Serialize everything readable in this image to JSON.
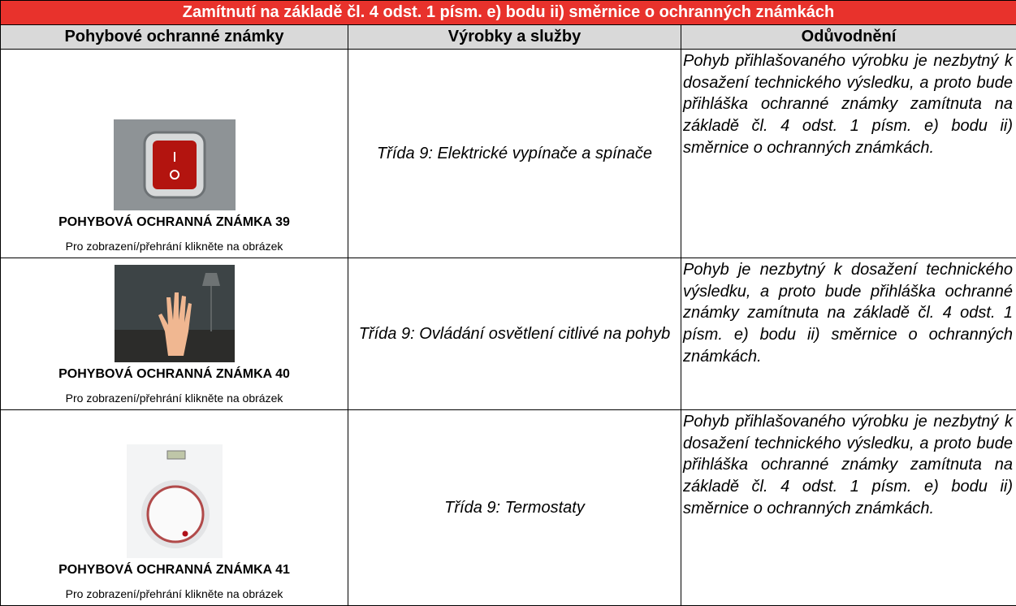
{
  "table": {
    "title": "Zamítnutí na základě čl. 4 odst. 1 písm. e) bodu ii) směrnice o ochranných známkách",
    "headers": [
      "Pohybové ochranné známky",
      "Výrobky a služby",
      "Odůvodnění"
    ],
    "rows": [
      {
        "mark": "POHYBOVÁ OCHRANNÁ ZNÁMKA 39",
        "caption": "Pro zobrazení/přehrání klikněte na obrázek",
        "goods": "Třída 9: Elektrické vypínače a spínače",
        "reasoning": "Pohyb přihlašovaného výrobku je nezbytný k dosažení technického výsledku, a proto bude přihláška ochranné známky zamítnuta na základě čl. 4 odst. 1 písm. e) bodu ii) směrnice o ochranných známkách."
      },
      {
        "mark": "POHYBOVÁ OCHRANNÁ ZNÁMKA 40",
        "caption": "Pro zobrazení/přehrání klikněte na obrázek",
        "goods": "Třída 9: Ovládání osvětlení citlivé na pohyb",
        "reasoning": "Pohyb je nezbytný k dosažení technického výsledku, a proto bude přihláška ochranné známky zamítnuta na základě čl. 4 odst. 1 písm. e) bodu ii) směrnice o ochranných známkách."
      },
      {
        "mark": "POHYBOVÁ OCHRANNÁ ZNÁMKA 41",
        "caption": "Pro zobrazení/přehrání klikněte na obrázek",
        "goods": "Třída 9: Termostaty",
        "reasoning": "Pohyb přihlašovaného výrobku je nezbytný k dosažení technického výsledku, a proto bude přihláška ochranné známky zamítnuta na základě čl. 4 odst. 1 písm. e) bodu ii) směrnice o ochranných známkách."
      }
    ]
  }
}
